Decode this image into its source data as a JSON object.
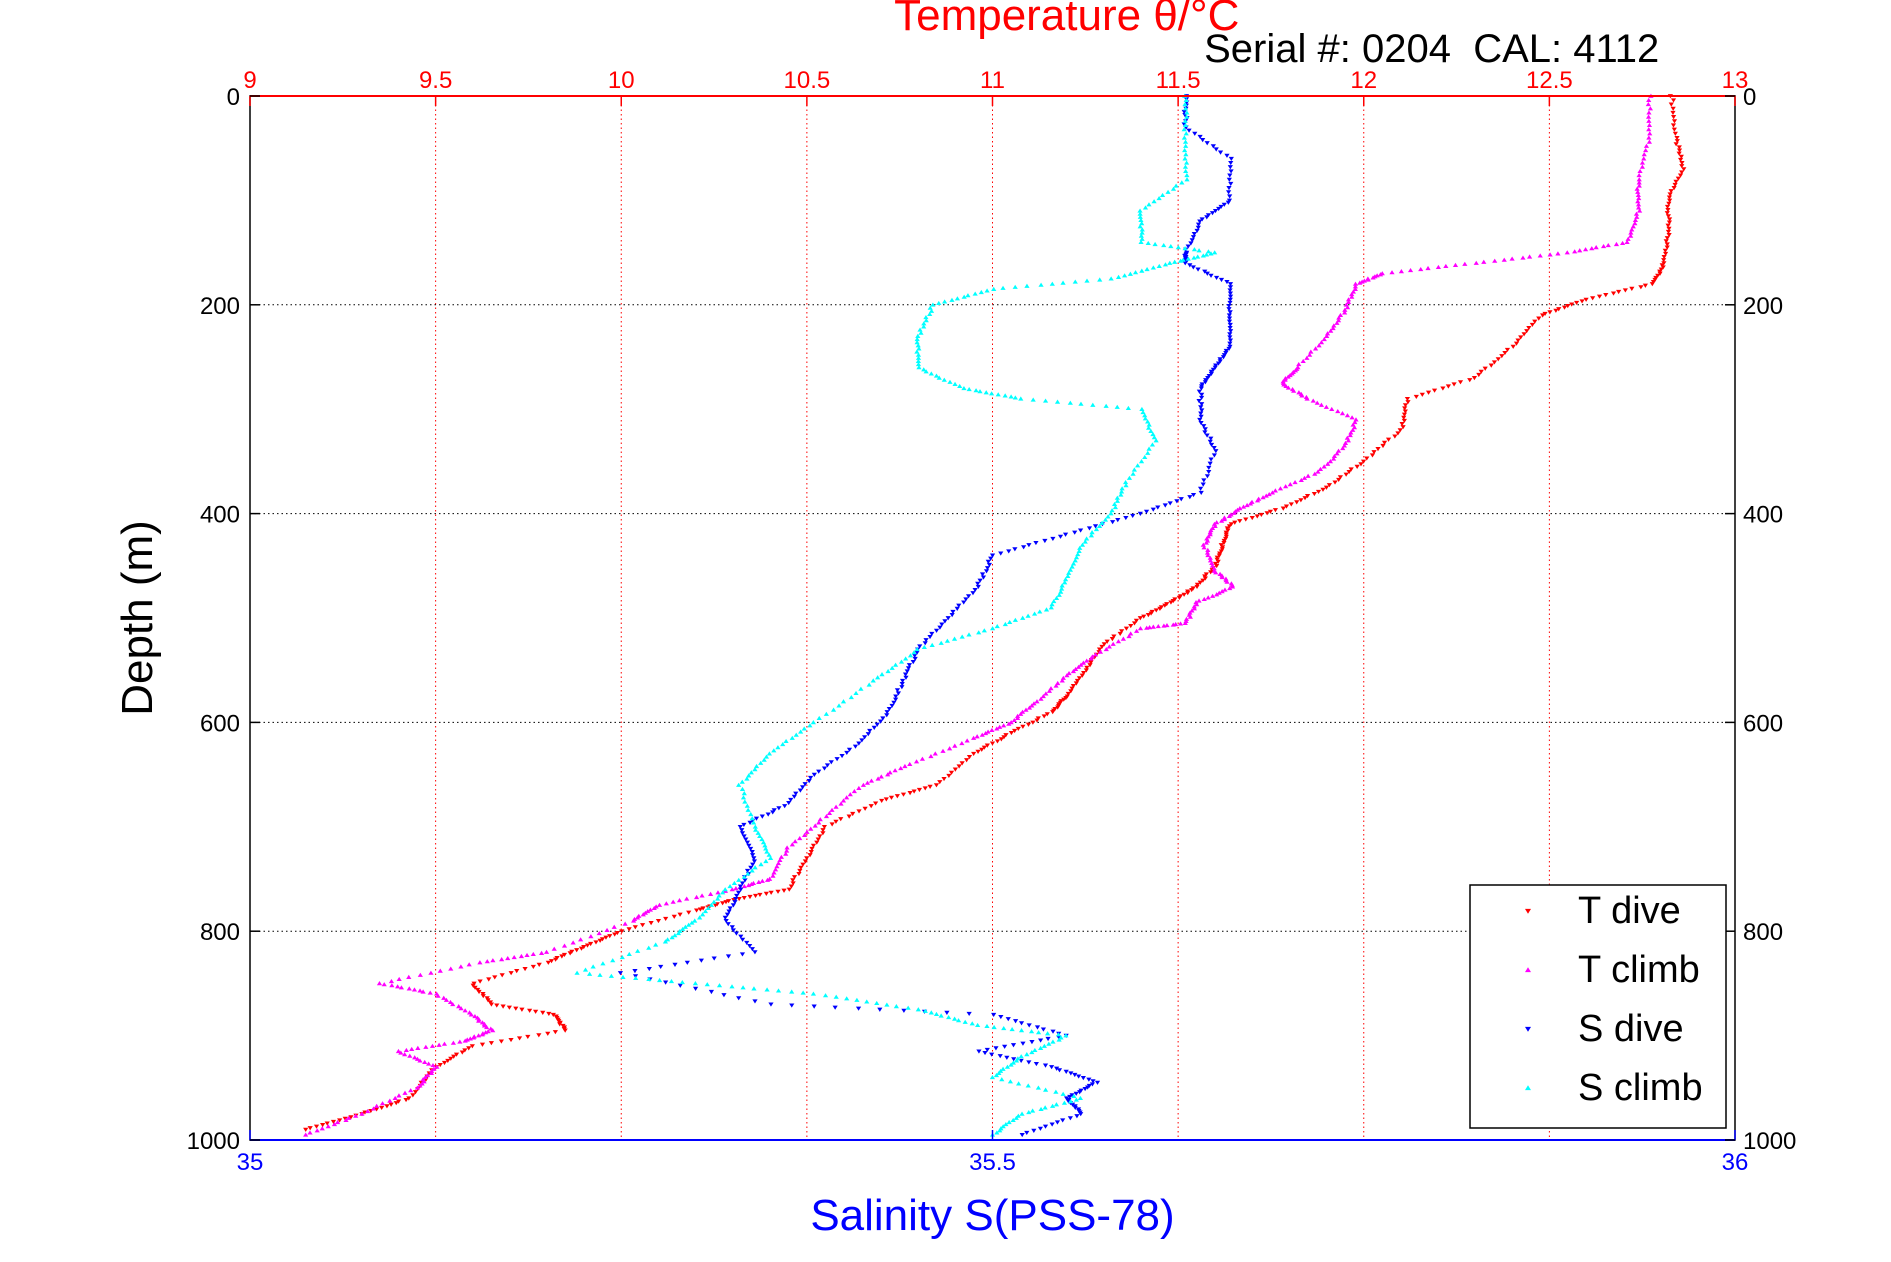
{
  "chart_data": {
    "type": "scatter",
    "title": "Temperature θ/°C",
    "subtitle": "Serial #: 0204  CAL: 4112",
    "top_xlabel": "Temperature θ/°C",
    "xlabel": "Salinity S(PSS-78)",
    "ylabel": "Depth (m)",
    "top_xlim": [
      9,
      13
    ],
    "top_xticks": [
      "9",
      "9.5",
      "10",
      "10.5",
      "11",
      "11.5",
      "12",
      "12.5",
      "13"
    ],
    "xlim": [
      35,
      36
    ],
    "xticks": [
      "35",
      "35.5",
      "36"
    ],
    "ylim": [
      0,
      1000
    ],
    "y_reversed": true,
    "yticks": [
      "0",
      "200",
      "400",
      "600",
      "800",
      "1000"
    ],
    "grid": true,
    "legend_position": "bottom-right",
    "colors": {
      "t_axis": "#ff0000",
      "s_axis": "#0000ff",
      "grid_t": "#ff0000",
      "grid_y": "#000000"
    },
    "series": [
      {
        "name": "T dive",
        "axis": "temperature",
        "color": "#ff0000",
        "marker": "triangle-down",
        "points": [
          [
            12.83,
            0
          ],
          [
            12.84,
            40
          ],
          [
            12.86,
            70
          ],
          [
            12.82,
            100
          ],
          [
            12.82,
            130
          ],
          [
            12.81,
            160
          ],
          [
            12.78,
            180
          ],
          [
            12.6,
            195
          ],
          [
            12.48,
            210
          ],
          [
            12.4,
            240
          ],
          [
            12.3,
            270
          ],
          [
            12.12,
            290
          ],
          [
            12.1,
            320
          ],
          [
            12.0,
            350
          ],
          [
            11.9,
            375
          ],
          [
            11.78,
            395
          ],
          [
            11.64,
            410
          ],
          [
            11.62,
            430
          ],
          [
            11.6,
            450
          ],
          [
            11.55,
            470
          ],
          [
            11.48,
            485
          ],
          [
            11.4,
            500
          ],
          [
            11.3,
            525
          ],
          [
            11.25,
            550
          ],
          [
            11.2,
            575
          ],
          [
            11.16,
            590
          ],
          [
            11.05,
            610
          ],
          [
            10.95,
            630
          ],
          [
            10.85,
            660
          ],
          [
            10.7,
            675
          ],
          [
            10.55,
            700
          ],
          [
            10.5,
            730
          ],
          [
            10.45,
            760
          ],
          [
            10.3,
            770
          ],
          [
            10.2,
            780
          ],
          [
            10.0,
            800
          ],
          [
            9.9,
            815
          ],
          [
            9.8,
            830
          ],
          [
            9.6,
            850
          ],
          [
            9.65,
            870
          ],
          [
            9.82,
            880
          ],
          [
            9.85,
            895
          ],
          [
            9.6,
            910
          ],
          [
            9.5,
            930
          ],
          [
            9.43,
            960
          ],
          [
            9.3,
            975
          ],
          [
            9.15,
            990
          ]
        ]
      },
      {
        "name": "T climb",
        "axis": "temperature",
        "color": "#ff00ff",
        "marker": "triangle-up",
        "points": [
          [
            12.77,
            0
          ],
          [
            12.77,
            40
          ],
          [
            12.74,
            80
          ],
          [
            12.74,
            110
          ],
          [
            12.71,
            140
          ],
          [
            12.55,
            150
          ],
          [
            12.3,
            160
          ],
          [
            12.05,
            170
          ],
          [
            11.98,
            180
          ],
          [
            11.95,
            205
          ],
          [
            11.9,
            230
          ],
          [
            11.82,
            260
          ],
          [
            11.78,
            275
          ],
          [
            11.85,
            290
          ],
          [
            11.98,
            310
          ],
          [
            11.95,
            335
          ],
          [
            11.88,
            360
          ],
          [
            11.75,
            380
          ],
          [
            11.67,
            395
          ],
          [
            11.6,
            410
          ],
          [
            11.57,
            430
          ],
          [
            11.6,
            455
          ],
          [
            11.65,
            470
          ],
          [
            11.55,
            485
          ],
          [
            11.52,
            505
          ],
          [
            11.4,
            510
          ],
          [
            11.28,
            535
          ],
          [
            11.2,
            555
          ],
          [
            11.12,
            580
          ],
          [
            11.05,
            600
          ],
          [
            10.95,
            615
          ],
          [
            10.78,
            640
          ],
          [
            10.65,
            660
          ],
          [
            10.55,
            690
          ],
          [
            10.45,
            720
          ],
          [
            10.4,
            750
          ],
          [
            10.3,
            760
          ],
          [
            10.1,
            775
          ],
          [
            10.03,
            790
          ],
          [
            9.8,
            820
          ],
          [
            9.62,
            830
          ],
          [
            9.35,
            850
          ],
          [
            9.5,
            860
          ],
          [
            9.6,
            880
          ],
          [
            9.65,
            895
          ],
          [
            9.58,
            905
          ],
          [
            9.4,
            915
          ],
          [
            9.5,
            930
          ],
          [
            9.45,
            950
          ],
          [
            9.3,
            975
          ],
          [
            9.15,
            995
          ]
        ]
      },
      {
        "name": "S dive",
        "axis": "salinity",
        "color": "#0000ff",
        "marker": "triangle-down",
        "points": [
          [
            35.63,
            0
          ],
          [
            35.63,
            30
          ],
          [
            35.66,
            60
          ],
          [
            35.66,
            100
          ],
          [
            35.64,
            120
          ],
          [
            35.63,
            150
          ],
          [
            35.63,
            160
          ],
          [
            35.66,
            180
          ],
          [
            35.66,
            210
          ],
          [
            35.66,
            240
          ],
          [
            35.65,
            260
          ],
          [
            35.64,
            280
          ],
          [
            35.64,
            310
          ],
          [
            35.65,
            340
          ],
          [
            35.64,
            380
          ],
          [
            35.6,
            400
          ],
          [
            35.55,
            420
          ],
          [
            35.5,
            440
          ],
          [
            35.49,
            470
          ],
          [
            35.47,
            500
          ],
          [
            35.45,
            530
          ],
          [
            35.44,
            560
          ],
          [
            35.43,
            590
          ],
          [
            35.41,
            620
          ],
          [
            35.38,
            650
          ],
          [
            35.36,
            680
          ],
          [
            35.33,
            700
          ],
          [
            35.34,
            730
          ],
          [
            35.33,
            760
          ],
          [
            35.32,
            790
          ],
          [
            35.34,
            820
          ],
          [
            35.25,
            840
          ],
          [
            35.35,
            870
          ],
          [
            35.5,
            880
          ],
          [
            35.55,
            900
          ],
          [
            35.49,
            915
          ],
          [
            35.54,
            930
          ],
          [
            35.57,
            945
          ],
          [
            35.55,
            960
          ],
          [
            35.56,
            975
          ],
          [
            35.52,
            995
          ]
        ]
      },
      {
        "name": "S climb",
        "axis": "salinity",
        "color": "#00ffff",
        "marker": "triangle-up",
        "points": [
          [
            35.63,
            0
          ],
          [
            35.63,
            40
          ],
          [
            35.63,
            80
          ],
          [
            35.6,
            110
          ],
          [
            35.6,
            140
          ],
          [
            35.65,
            150
          ],
          [
            35.62,
            160
          ],
          [
            35.58,
            175
          ],
          [
            35.5,
            185
          ],
          [
            35.46,
            200
          ],
          [
            35.45,
            230
          ],
          [
            35.45,
            260
          ],
          [
            35.48,
            280
          ],
          [
            35.52,
            290
          ],
          [
            35.6,
            300
          ],
          [
            35.61,
            330
          ],
          [
            35.59,
            370
          ],
          [
            35.58,
            400
          ],
          [
            35.56,
            430
          ],
          [
            35.55,
            460
          ],
          [
            35.54,
            490
          ],
          [
            35.5,
            510
          ],
          [
            35.45,
            530
          ],
          [
            35.42,
            560
          ],
          [
            35.38,
            600
          ],
          [
            35.35,
            630
          ],
          [
            35.33,
            660
          ],
          [
            35.34,
            700
          ],
          [
            35.35,
            730
          ],
          [
            35.32,
            760
          ],
          [
            35.3,
            790
          ],
          [
            35.28,
            810
          ],
          [
            35.22,
            840
          ],
          [
            35.3,
            850
          ],
          [
            35.38,
            860
          ],
          [
            35.45,
            875
          ],
          [
            35.49,
            890
          ],
          [
            35.55,
            900
          ],
          [
            35.52,
            920
          ],
          [
            35.5,
            940
          ],
          [
            35.56,
            960
          ],
          [
            35.52,
            975
          ],
          [
            35.5,
            995
          ]
        ]
      }
    ]
  }
}
